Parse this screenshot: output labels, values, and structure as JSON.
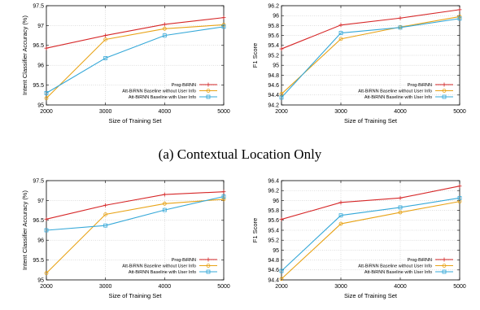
{
  "caption_a": "(a) Contextual Location Only",
  "colors": {
    "prog": "#d62728",
    "without": "#e8a317",
    "with": "#35a8d8"
  },
  "chart_data": [
    {
      "type": "line",
      "xlabel": "Size of Training Set",
      "ylabel": "Intent Classifier Accuracy (%)",
      "x": [
        2000,
        3000,
        4000,
        5000
      ],
      "xlim": [
        2000,
        5000
      ],
      "ylim": [
        95,
        97.5
      ],
      "xticks": [
        "2000",
        "3000",
        "4000",
        "5000"
      ],
      "yticks": [
        "95",
        "95.5",
        "96",
        "96.5",
        "97",
        "97.5"
      ],
      "legend_position": "bottom-right",
      "series": [
        {
          "name": "Prog-BiRNN",
          "values": [
            96.43,
            96.75,
            97.03,
            97.2
          ]
        },
        {
          "name": "Att-BiRNN Baseline without User Info",
          "values": [
            95.17,
            96.65,
            96.92,
            97.02
          ]
        },
        {
          "name": "Att-BiRNN Baseline with User Info",
          "values": [
            95.3,
            96.18,
            96.75,
            96.97
          ]
        }
      ]
    },
    {
      "type": "line",
      "xlabel": "Size of Training Set",
      "ylabel": "F1 Score",
      "x": [
        2000,
        3000,
        4000,
        5000
      ],
      "xlim": [
        2000,
        5000
      ],
      "ylim": [
        94.2,
        96.2
      ],
      "xticks": [
        "2000",
        "3000",
        "4000",
        "5000"
      ],
      "yticks": [
        "94.2",
        "94.4",
        "94.6",
        "94.8",
        "95",
        "95.2",
        "95.4",
        "95.6",
        "95.8",
        "96",
        "96.2"
      ],
      "legend_position": "bottom-right",
      "series": [
        {
          "name": "Prog-BiRNN",
          "values": [
            95.33,
            95.81,
            95.95,
            96.12
          ]
        },
        {
          "name": "Att-BiRNN Baseline without User Info",
          "values": [
            94.42,
            95.53,
            95.77,
            95.98
          ]
        },
        {
          "name": "Att-BiRNN Baseline with User Info",
          "values": [
            94.35,
            95.65,
            95.76,
            95.94
          ]
        }
      ]
    },
    {
      "type": "line",
      "xlabel": "Size of Training Set",
      "ylabel": "Intent Classifier Accuracy (%)",
      "x": [
        2000,
        3000,
        4000,
        5000
      ],
      "xlim": [
        2000,
        5000
      ],
      "ylim": [
        95,
        97.5
      ],
      "xticks": [
        "2000",
        "3000",
        "4000",
        "5000"
      ],
      "yticks": [
        "95",
        "95.5",
        "96",
        "96.5",
        "97",
        "97.5"
      ],
      "legend_position": "bottom-right",
      "series": [
        {
          "name": "Prog-BiRNN",
          "values": [
            96.53,
            96.88,
            97.15,
            97.22
          ]
        },
        {
          "name": "Att-BiRNN Baseline without User Info",
          "values": [
            95.17,
            96.65,
            96.92,
            97.03
          ]
        },
        {
          "name": "Att-BiRNN Baseline with User Info",
          "values": [
            96.25,
            96.37,
            96.76,
            97.1
          ]
        }
      ]
    },
    {
      "type": "line",
      "xlabel": "Size of Training Set",
      "ylabel": "F1 Score",
      "x": [
        2000,
        3000,
        4000,
        5000
      ],
      "xlim": [
        2000,
        5000
      ],
      "ylim": [
        94.4,
        96.4
      ],
      "xticks": [
        "2000",
        "3000",
        "4000",
        "5000"
      ],
      "yticks": [
        "94.4",
        "94.6",
        "94.8",
        "95",
        "95.2",
        "95.4",
        "95.6",
        "95.8",
        "96",
        "96.2",
        "96.4"
      ],
      "legend_position": "bottom-right",
      "series": [
        {
          "name": "Prog-BiRNN",
          "values": [
            95.62,
            95.96,
            96.05,
            96.29
          ]
        },
        {
          "name": "Att-BiRNN Baseline without User Info",
          "values": [
            94.42,
            95.53,
            95.76,
            95.98
          ]
        },
        {
          "name": "Att-BiRNN Baseline with User Info",
          "values": [
            94.58,
            95.7,
            95.86,
            96.05
          ]
        }
      ]
    }
  ]
}
